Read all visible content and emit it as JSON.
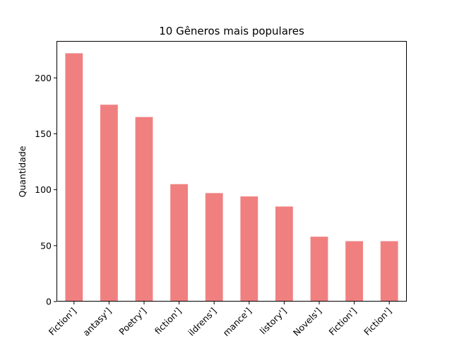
{
  "chart_data": {
    "type": "bar",
    "title": "10 Gêneros mais populares",
    "xlabel": "",
    "ylabel": "Quantidade",
    "categories": [
      "['Fiction']",
      "['Fantasy']",
      "['Poetry']",
      "['Nonfiction']",
      "['Childrens']",
      "['Romance']",
      "['History']",
      "['Novels']",
      "['Science Fiction']",
      "['Literary Fiction']"
    ],
    "visible_tick_labels": [
      "Fiction']",
      "antasy']",
      "Poetry']",
      "fiction']",
      "ildrens']",
      "mance']",
      "listory']",
      "Novels']",
      "Fiction']",
      "Fiction']"
    ],
    "values": [
      222,
      176,
      165,
      105,
      97,
      94,
      85,
      58,
      54,
      54
    ],
    "ylim": [
      0,
      233
    ],
    "yticks": [
      0,
      50,
      100,
      150,
      200
    ],
    "bar_color": "#f08080",
    "grid": false,
    "legend": "none"
  }
}
